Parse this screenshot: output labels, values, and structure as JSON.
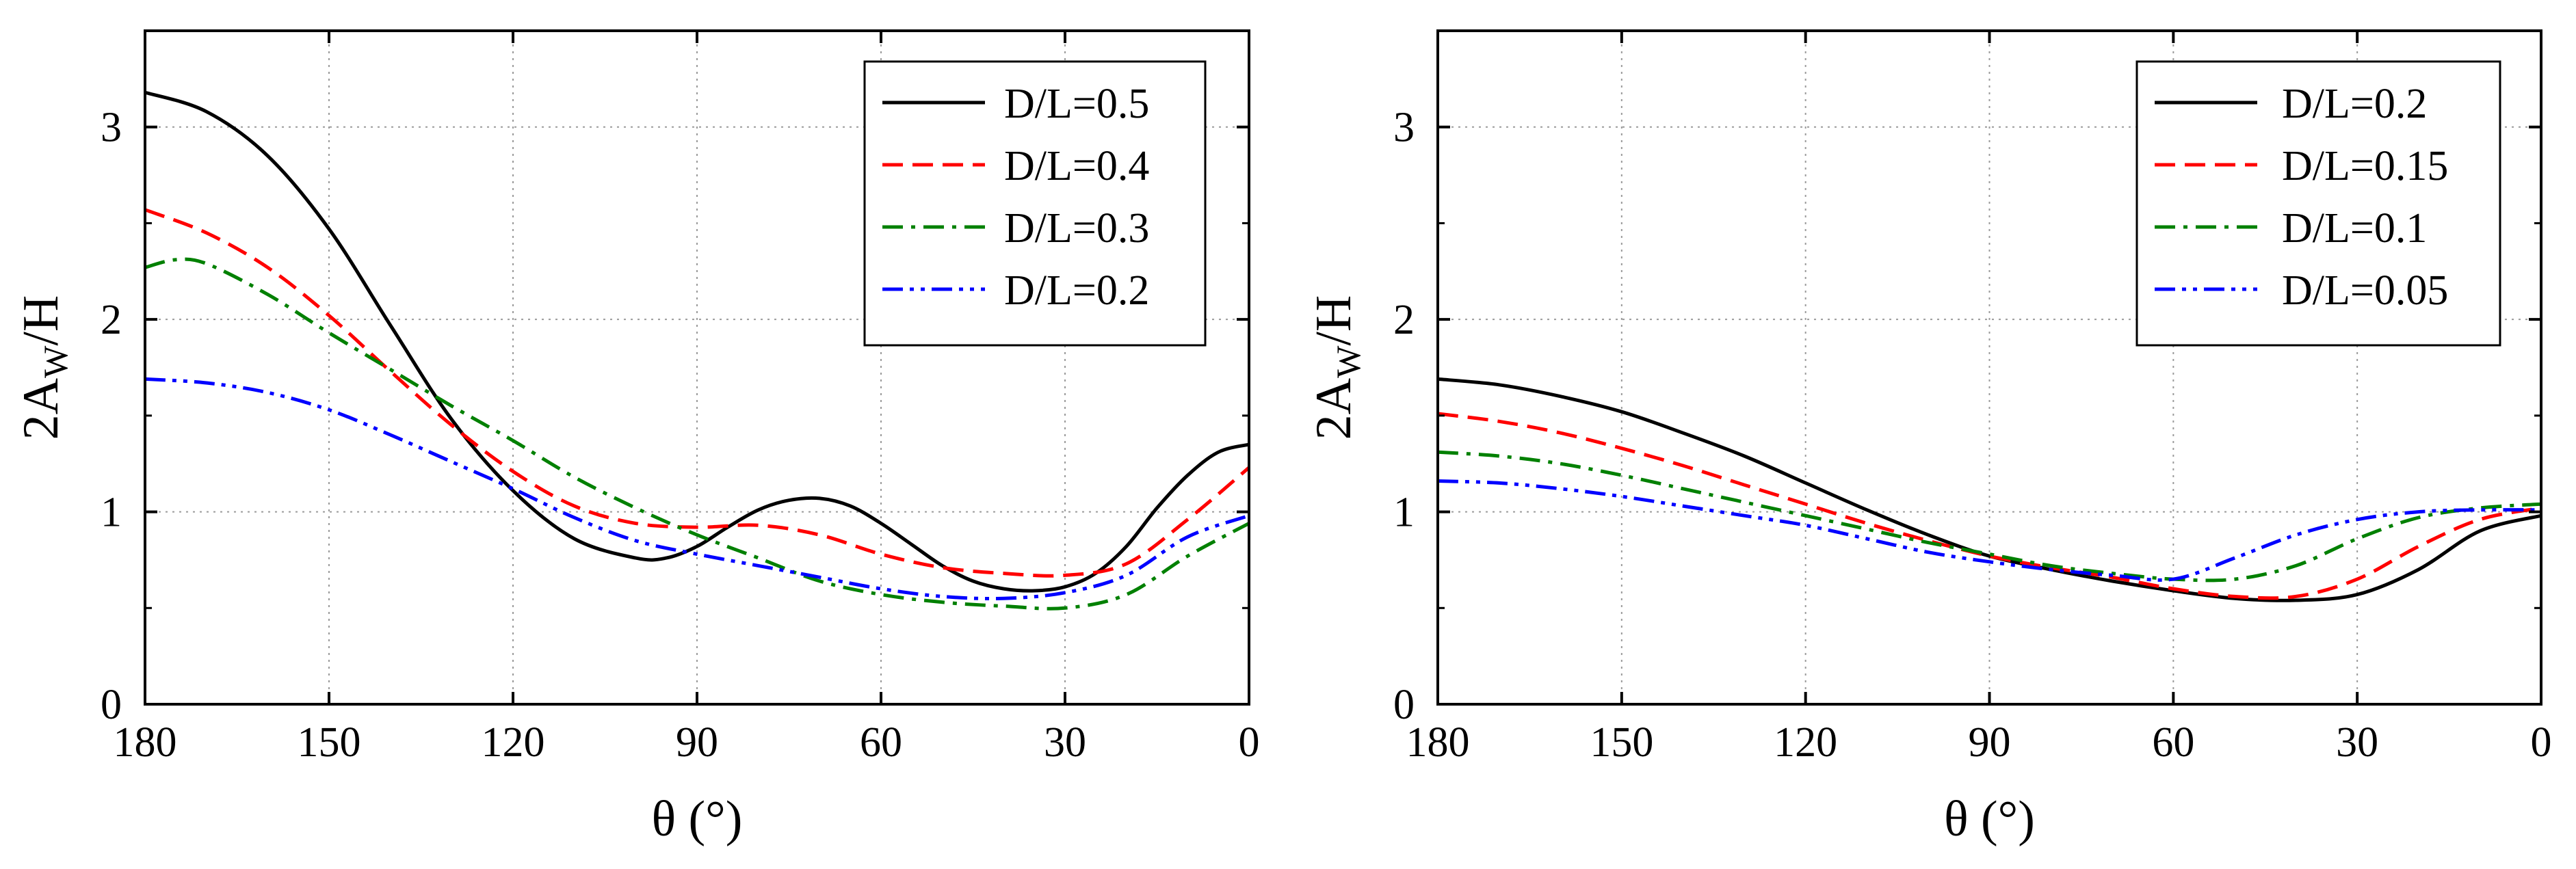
{
  "chart_data": [
    {
      "type": "line",
      "title": "",
      "xlabel": "θ (°)",
      "ylabel_main": "2A",
      "ylabel_sub": "W",
      "ylabel_tail": "/H",
      "xlim": [
        180,
        0
      ],
      "ylim": [
        0,
        3.5
      ],
      "xticks": [
        180,
        150,
        120,
        90,
        60,
        30,
        0
      ],
      "yticks": [
        0,
        1,
        2,
        3
      ],
      "grid": true,
      "legend_position": "top-right",
      "series": [
        {
          "name": "D/L=0.5",
          "color": "#000000",
          "dash": "solid",
          "x": [
            180,
            170,
            160,
            150,
            140,
            130,
            120,
            110,
            100,
            95,
            90,
            85,
            80,
            75,
            70,
            65,
            60,
            55,
            50,
            45,
            40,
            35,
            30,
            25,
            20,
            15,
            10,
            5,
            0
          ],
          "y": [
            3.18,
            3.08,
            2.85,
            2.47,
            1.97,
            1.48,
            1.11,
            0.86,
            0.76,
            0.76,
            0.82,
            0.92,
            1.01,
            1.06,
            1.07,
            1.03,
            0.94,
            0.83,
            0.72,
            0.64,
            0.6,
            0.59,
            0.61,
            0.68,
            0.82,
            1.02,
            1.19,
            1.31,
            1.35
          ]
        },
        {
          "name": "D/L=0.4",
          "color": "#ff0000",
          "dash": "dashed",
          "x": [
            180,
            170,
            160,
            150,
            140,
            130,
            120,
            110,
            100,
            90,
            80,
            70,
            60,
            50,
            40,
            30,
            20,
            10,
            0
          ],
          "y": [
            2.57,
            2.45,
            2.27,
            2.02,
            1.73,
            1.45,
            1.21,
            1.03,
            0.94,
            0.92,
            0.93,
            0.88,
            0.78,
            0.71,
            0.68,
            0.67,
            0.73,
            0.96,
            1.23
          ]
        },
        {
          "name": "D/L=0.3",
          "color": "#008000",
          "dash": "dashdot",
          "x": [
            180,
            175,
            170,
            160,
            150,
            140,
            130,
            120,
            110,
            100,
            90,
            80,
            70,
            60,
            50,
            40,
            30,
            20,
            10,
            0
          ],
          "y": [
            2.27,
            2.31,
            2.29,
            2.13,
            1.93,
            1.74,
            1.55,
            1.37,
            1.18,
            1.02,
            0.88,
            0.76,
            0.64,
            0.57,
            0.53,
            0.51,
            0.5,
            0.57,
            0.77,
            0.94
          ]
        },
        {
          "name": "D/L=0.2",
          "color": "#0000ff",
          "dash": "dashdotdot",
          "x": [
            180,
            170,
            160,
            150,
            140,
            130,
            120,
            110,
            100,
            90,
            80,
            70,
            60,
            50,
            40,
            30,
            20,
            10,
            0
          ],
          "y": [
            1.69,
            1.67,
            1.62,
            1.53,
            1.4,
            1.26,
            1.12,
            0.97,
            0.85,
            0.78,
            0.72,
            0.66,
            0.6,
            0.56,
            0.55,
            0.58,
            0.67,
            0.87,
            0.98
          ]
        }
      ]
    },
    {
      "type": "line",
      "title": "",
      "xlabel": "θ (°)",
      "ylabel_main": "2A",
      "ylabel_sub": "W",
      "ylabel_tail": "/H",
      "xlim": [
        180,
        0
      ],
      "ylim": [
        0,
        3.5
      ],
      "xticks": [
        180,
        150,
        120,
        90,
        60,
        30,
        0
      ],
      "yticks": [
        0,
        1,
        2,
        3
      ],
      "grid": true,
      "legend_position": "top-right",
      "series": [
        {
          "name": "D/L=0.2",
          "color": "#000000",
          "dash": "solid",
          "x": [
            180,
            170,
            160,
            150,
            140,
            130,
            120,
            110,
            100,
            90,
            80,
            70,
            60,
            50,
            40,
            30,
            20,
            10,
            0
          ],
          "y": [
            1.69,
            1.66,
            1.6,
            1.52,
            1.41,
            1.29,
            1.15,
            1.01,
            0.88,
            0.77,
            0.7,
            0.64,
            0.59,
            0.55,
            0.54,
            0.57,
            0.7,
            0.9,
            0.98
          ]
        },
        {
          "name": "D/L=0.15",
          "color": "#ff0000",
          "dash": "dashed",
          "x": [
            180,
            170,
            160,
            150,
            140,
            130,
            120,
            110,
            100,
            90,
            80,
            70,
            60,
            50,
            40,
            30,
            20,
            10,
            0
          ],
          "y": [
            1.51,
            1.47,
            1.41,
            1.33,
            1.24,
            1.14,
            1.04,
            0.94,
            0.85,
            0.77,
            0.71,
            0.66,
            0.6,
            0.56,
            0.56,
            0.65,
            0.82,
            0.96,
            1.02
          ]
        },
        {
          "name": "D/L=0.1",
          "color": "#008000",
          "dash": "dashdot",
          "x": [
            180,
            170,
            160,
            150,
            140,
            130,
            120,
            110,
            100,
            90,
            80,
            70,
            60,
            50,
            40,
            30,
            20,
            10,
            0
          ],
          "y": [
            1.31,
            1.29,
            1.25,
            1.19,
            1.12,
            1.05,
            0.98,
            0.91,
            0.84,
            0.78,
            0.72,
            0.68,
            0.65,
            0.65,
            0.72,
            0.86,
            0.97,
            1.02,
            1.04
          ]
        },
        {
          "name": "D/L=0.05",
          "color": "#0000ff",
          "dash": "dashdotdot",
          "x": [
            180,
            170,
            160,
            150,
            140,
            130,
            120,
            110,
            100,
            90,
            80,
            70,
            60,
            50,
            40,
            30,
            20,
            10,
            0
          ],
          "y": [
            1.16,
            1.15,
            1.12,
            1.08,
            1.03,
            0.98,
            0.93,
            0.86,
            0.79,
            0.74,
            0.7,
            0.67,
            0.65,
            0.76,
            0.88,
            0.96,
            1.0,
            1.01,
            1.01
          ]
        }
      ]
    }
  ]
}
